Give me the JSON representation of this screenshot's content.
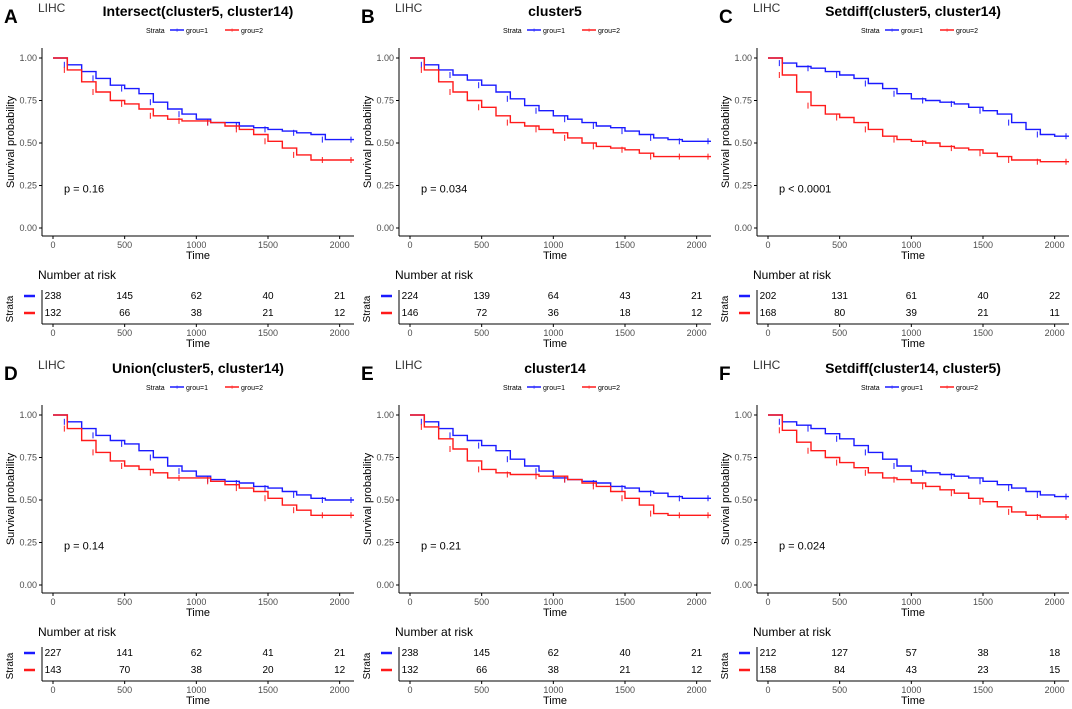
{
  "figure": {
    "time_axis_ticks": [
      0,
      500,
      1000,
      1500,
      2000
    ],
    "survival_axis_ticks": [
      "0.00",
      "0.25",
      "0.50",
      "0.75",
      "1.00"
    ],
    "colors": {
      "group1": "#1a1aff",
      "group2": "#ff1a1a",
      "axis": "#000000",
      "tick_label": "#4d4d4d"
    }
  },
  "chart_data": [
    {
      "type": "line",
      "panel_label": "A",
      "cancer": "LIHC",
      "title": "Intersect(cluster5, cluster14)",
      "legend": {
        "title": "Strata",
        "placement": "top",
        "entries": [
          "grou=1",
          "grou=2"
        ]
      },
      "xlabel": "Time",
      "ylabel": "Survival probability",
      "xlim": [
        0,
        2100
      ],
      "ylim": [
        0,
        1.0
      ],
      "pvalue": "p = 0.16",
      "series": [
        {
          "name": "grou=1",
          "x": [
            0,
            100,
            200,
            300,
            400,
            500,
            600,
            700,
            800,
            900,
            1000,
            1100,
            1200,
            1300,
            1400,
            1500,
            1600,
            1700,
            1800,
            1900,
            2000,
            2100
          ],
          "y": [
            1.0,
            0.96,
            0.92,
            0.88,
            0.84,
            0.82,
            0.79,
            0.74,
            0.7,
            0.67,
            0.64,
            0.62,
            0.62,
            0.6,
            0.59,
            0.58,
            0.57,
            0.56,
            0.55,
            0.52,
            0.52,
            0.52
          ]
        },
        {
          "name": "grou=2",
          "x": [
            0,
            100,
            200,
            300,
            400,
            500,
            600,
            700,
            800,
            900,
            1000,
            1100,
            1200,
            1300,
            1400,
            1500,
            1600,
            1700,
            1800,
            1900,
            2000,
            2100
          ],
          "y": [
            1.0,
            0.93,
            0.86,
            0.8,
            0.75,
            0.73,
            0.7,
            0.66,
            0.64,
            0.63,
            0.63,
            0.62,
            0.6,
            0.58,
            0.55,
            0.51,
            0.47,
            0.43,
            0.4,
            0.4,
            0.4,
            0.4
          ]
        }
      ],
      "risk_table": {
        "heading": "Number at risk",
        "strata_label": "Strata",
        "rows": [
          [
            238,
            145,
            62,
            40,
            21
          ],
          [
            132,
            66,
            38,
            21,
            12
          ]
        ]
      }
    },
    {
      "type": "line",
      "panel_label": "B",
      "cancer": "LIHC",
      "title": "cluster5",
      "legend": {
        "title": "Strata",
        "placement": "top",
        "entries": [
          "grou=1",
          "grou=2"
        ]
      },
      "xlabel": "Time",
      "ylabel": "Survival probability",
      "xlim": [
        0,
        2100
      ],
      "ylim": [
        0,
        1.0
      ],
      "pvalue": "p = 0.034",
      "series": [
        {
          "name": "grou=1",
          "x": [
            0,
            100,
            200,
            300,
            400,
            500,
            600,
            700,
            800,
            900,
            1000,
            1100,
            1200,
            1300,
            1400,
            1500,
            1600,
            1700,
            1800,
            1900,
            2000,
            2100
          ],
          "y": [
            1.0,
            0.96,
            0.93,
            0.9,
            0.87,
            0.84,
            0.8,
            0.76,
            0.72,
            0.69,
            0.66,
            0.64,
            0.62,
            0.6,
            0.59,
            0.57,
            0.55,
            0.53,
            0.52,
            0.51,
            0.51,
            0.51
          ]
        },
        {
          "name": "grou=2",
          "x": [
            0,
            100,
            200,
            300,
            400,
            500,
            600,
            700,
            800,
            900,
            1000,
            1100,
            1200,
            1300,
            1400,
            1500,
            1600,
            1700,
            1800,
            1900,
            2000,
            2100
          ],
          "y": [
            1.0,
            0.93,
            0.86,
            0.8,
            0.75,
            0.71,
            0.66,
            0.62,
            0.6,
            0.58,
            0.56,
            0.53,
            0.5,
            0.48,
            0.47,
            0.46,
            0.44,
            0.42,
            0.42,
            0.42,
            0.42,
            0.42
          ]
        }
      ],
      "risk_table": {
        "heading": "Number at risk",
        "strata_label": "Strata",
        "rows": [
          [
            224,
            139,
            64,
            43,
            21
          ],
          [
            146,
            72,
            36,
            18,
            12
          ]
        ]
      }
    },
    {
      "type": "line",
      "panel_label": "C",
      "cancer": "LIHC",
      "title": "Setdiff(cluster5, cluster14)",
      "legend": {
        "title": "Strata",
        "placement": "top",
        "entries": [
          "grou=1",
          "grou=2"
        ]
      },
      "xlabel": "Time",
      "ylabel": "Survival probability",
      "xlim": [
        0,
        2100
      ],
      "ylim": [
        0,
        1.0
      ],
      "pvalue": "p < 0.0001",
      "series": [
        {
          "name": "grou=1",
          "x": [
            0,
            100,
            200,
            300,
            400,
            500,
            600,
            700,
            800,
            900,
            1000,
            1100,
            1200,
            1300,
            1400,
            1500,
            1600,
            1700,
            1800,
            1900,
            2000,
            2100
          ],
          "y": [
            1.0,
            0.97,
            0.95,
            0.94,
            0.92,
            0.9,
            0.88,
            0.85,
            0.82,
            0.79,
            0.76,
            0.75,
            0.74,
            0.73,
            0.71,
            0.69,
            0.67,
            0.62,
            0.58,
            0.55,
            0.54,
            0.54
          ]
        },
        {
          "name": "grou=2",
          "x": [
            0,
            100,
            200,
            300,
            400,
            500,
            600,
            700,
            800,
            900,
            1000,
            1100,
            1200,
            1300,
            1400,
            1500,
            1600,
            1700,
            1800,
            1900,
            2000,
            2100
          ],
          "y": [
            1.0,
            0.9,
            0.8,
            0.72,
            0.67,
            0.65,
            0.62,
            0.58,
            0.54,
            0.52,
            0.51,
            0.5,
            0.48,
            0.47,
            0.46,
            0.44,
            0.42,
            0.4,
            0.4,
            0.39,
            0.39,
            0.39
          ]
        }
      ],
      "risk_table": {
        "heading": "Number at risk",
        "strata_label": "Strata",
        "rows": [
          [
            202,
            131,
            61,
            40,
            22
          ],
          [
            168,
            80,
            39,
            21,
            11
          ]
        ]
      }
    },
    {
      "type": "line",
      "panel_label": "D",
      "cancer": "LIHC",
      "title": "Union(cluster5, cluster14)",
      "legend": {
        "title": "Strata",
        "placement": "top",
        "entries": [
          "grou=1",
          "grou=2"
        ]
      },
      "xlabel": "Time",
      "ylabel": "Survival probability",
      "xlim": [
        0,
        2100
      ],
      "ylim": [
        0,
        1.0
      ],
      "pvalue": "p = 0.14",
      "series": [
        {
          "name": "grou=1",
          "x": [
            0,
            100,
            200,
            300,
            400,
            500,
            600,
            700,
            800,
            900,
            1000,
            1100,
            1200,
            1300,
            1400,
            1500,
            1600,
            1700,
            1800,
            1900,
            2000,
            2100
          ],
          "y": [
            1.0,
            0.96,
            0.92,
            0.88,
            0.85,
            0.83,
            0.79,
            0.75,
            0.7,
            0.67,
            0.64,
            0.62,
            0.61,
            0.6,
            0.58,
            0.57,
            0.55,
            0.53,
            0.51,
            0.5,
            0.5,
            0.5
          ]
        },
        {
          "name": "grou=2",
          "x": [
            0,
            100,
            200,
            300,
            400,
            500,
            600,
            700,
            800,
            900,
            1000,
            1100,
            1200,
            1300,
            1400,
            1500,
            1600,
            1700,
            1800,
            1900,
            2000,
            2100
          ],
          "y": [
            1.0,
            0.92,
            0.85,
            0.78,
            0.73,
            0.7,
            0.68,
            0.66,
            0.63,
            0.63,
            0.63,
            0.61,
            0.59,
            0.57,
            0.55,
            0.51,
            0.47,
            0.44,
            0.41,
            0.41,
            0.41,
            0.41
          ]
        }
      ],
      "risk_table": {
        "heading": "Number at risk",
        "strata_label": "Strata",
        "rows": [
          [
            227,
            141,
            62,
            41,
            21
          ],
          [
            143,
            70,
            38,
            20,
            12
          ]
        ]
      }
    },
    {
      "type": "line",
      "panel_label": "E",
      "cancer": "LIHC",
      "title": "cluster14",
      "legend": {
        "title": "Strata",
        "placement": "top",
        "entries": [
          "grou=1",
          "grou=2"
        ]
      },
      "xlabel": "Time",
      "ylabel": "Survival probability",
      "xlim": [
        0,
        2100
      ],
      "ylim": [
        0,
        1.0
      ],
      "pvalue": "p = 0.21",
      "series": [
        {
          "name": "grou=1",
          "x": [
            0,
            100,
            200,
            300,
            400,
            500,
            600,
            700,
            800,
            900,
            1000,
            1100,
            1200,
            1300,
            1400,
            1500,
            1600,
            1700,
            1800,
            1900,
            2000,
            2100
          ],
          "y": [
            1.0,
            0.96,
            0.92,
            0.88,
            0.85,
            0.82,
            0.79,
            0.74,
            0.7,
            0.67,
            0.63,
            0.62,
            0.61,
            0.6,
            0.58,
            0.57,
            0.55,
            0.54,
            0.52,
            0.51,
            0.51,
            0.51
          ]
        },
        {
          "name": "grou=2",
          "x": [
            0,
            100,
            200,
            300,
            400,
            500,
            600,
            700,
            800,
            900,
            1000,
            1100,
            1200,
            1300,
            1400,
            1500,
            1600,
            1700,
            1800,
            1900,
            2000,
            2100
          ],
          "y": [
            1.0,
            0.93,
            0.86,
            0.8,
            0.73,
            0.68,
            0.66,
            0.65,
            0.65,
            0.64,
            0.64,
            0.62,
            0.6,
            0.58,
            0.55,
            0.51,
            0.47,
            0.42,
            0.41,
            0.41,
            0.41,
            0.41
          ]
        }
      ],
      "risk_table": {
        "heading": "Number at risk",
        "strata_label": "Strata",
        "rows": [
          [
            238,
            145,
            62,
            40,
            21
          ],
          [
            132,
            66,
            38,
            21,
            12
          ]
        ]
      }
    },
    {
      "type": "line",
      "panel_label": "F",
      "cancer": "LIHC",
      "title": "Setdiff(cluster14, cluster5)",
      "legend": {
        "title": "Strata",
        "placement": "top",
        "entries": [
          "grou=1",
          "grou=2"
        ]
      },
      "xlabel": "Time",
      "ylabel": "Survival probability",
      "xlim": [
        0,
        2100
      ],
      "ylim": [
        0,
        1.0
      ],
      "pvalue": "p = 0.024",
      "series": [
        {
          "name": "grou=1",
          "x": [
            0,
            100,
            200,
            300,
            400,
            500,
            600,
            700,
            800,
            900,
            1000,
            1100,
            1200,
            1300,
            1400,
            1500,
            1600,
            1700,
            1800,
            1900,
            2000,
            2100
          ],
          "y": [
            1.0,
            0.96,
            0.94,
            0.92,
            0.89,
            0.86,
            0.82,
            0.78,
            0.74,
            0.7,
            0.67,
            0.66,
            0.65,
            0.64,
            0.63,
            0.61,
            0.59,
            0.57,
            0.55,
            0.53,
            0.52,
            0.52
          ]
        },
        {
          "name": "grou=2",
          "x": [
            0,
            100,
            200,
            300,
            400,
            500,
            600,
            700,
            800,
            900,
            1000,
            1100,
            1200,
            1300,
            1400,
            1500,
            1600,
            1700,
            1800,
            1900,
            2000,
            2100
          ],
          "y": [
            1.0,
            0.91,
            0.84,
            0.79,
            0.75,
            0.72,
            0.69,
            0.66,
            0.63,
            0.62,
            0.6,
            0.58,
            0.56,
            0.54,
            0.51,
            0.49,
            0.46,
            0.43,
            0.41,
            0.4,
            0.4,
            0.4
          ]
        }
      ],
      "risk_table": {
        "heading": "Number at risk",
        "strata_label": "Strata",
        "rows": [
          [
            212,
            127,
            57,
            38,
            18
          ],
          [
            158,
            84,
            43,
            23,
            15
          ]
        ]
      }
    }
  ]
}
